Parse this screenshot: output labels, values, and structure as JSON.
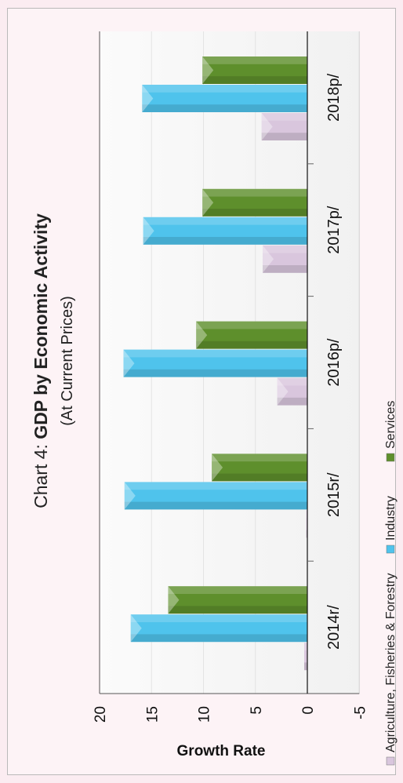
{
  "chart_data": {
    "type": "bar",
    "title_prefix": "Chart 4: ",
    "title_bold": "GDP by Economic Activity",
    "subtitle": "(At Current Prices)",
    "xlabel": "",
    "ylabel": "Growth Rate",
    "ylim": [
      -5,
      20
    ],
    "yticks": [
      "20",
      "15",
      "10",
      "5",
      "0",
      "-5"
    ],
    "categories": [
      "2014r/",
      "2015r/",
      "2016p/",
      "2017p/",
      "2018p/"
    ],
    "series": [
      {
        "name": "Agriculture, Fisheries & Forestry",
        "color": "#d9c6dd",
        "values": [
          0.3,
          0.1,
          2.9,
          4.3,
          4.4
        ]
      },
      {
        "name": "Industry",
        "color": "#4fc3ec",
        "values": [
          17.0,
          17.6,
          17.7,
          15.8,
          15.9
        ]
      },
      {
        "name": "Services",
        "color": "#5e8f2c",
        "values": [
          13.4,
          9.2,
          10.7,
          10.1,
          10.1
        ]
      }
    ],
    "grid": true,
    "legend_position": "bottom"
  }
}
